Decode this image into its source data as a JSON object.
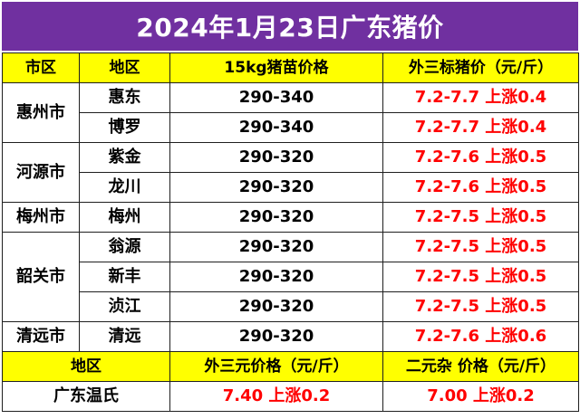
{
  "title": "2024年1月23日广东猪价",
  "header": {
    "col_city": "市区",
    "col_area": "地区",
    "col_piglet": "15kg猪苗价格",
    "col_outer": "外三标猪价（元/斤）"
  },
  "groups": [
    {
      "city": "惠州市",
      "rows": [
        {
          "area": "惠东",
          "piglet": "290-340",
          "outer": "7.2-7.7 上涨0.4"
        },
        {
          "area": "博罗",
          "piglet": "290-340",
          "outer": "7.2-7.7 上涨0.4"
        }
      ]
    },
    {
      "city": "河源市",
      "rows": [
        {
          "area": "紫金",
          "piglet": "290-320",
          "outer": "7.2-7.6 上涨0.5"
        },
        {
          "area": "龙川",
          "piglet": "290-320",
          "outer": "7.2-7.6 上涨0.5"
        }
      ]
    },
    {
      "city": "梅州市",
      "rows": [
        {
          "area": "梅州",
          "piglet": "290-320",
          "outer": "7.2-7.5 上涨0.5"
        }
      ]
    },
    {
      "city": "韶关市",
      "rows": [
        {
          "area": "翁源",
          "piglet": "290-320",
          "outer": "7.2-7.5 上涨0.5"
        },
        {
          "area": "新丰",
          "piglet": "290-320",
          "outer": "7.2-7.5 上涨0.5"
        },
        {
          "area": "浈江",
          "piglet": "290-320",
          "outer": "7.2-7.5 上涨0.5"
        }
      ]
    },
    {
      "city": "清远市",
      "rows": [
        {
          "area": "清远",
          "piglet": "290-320",
          "outer": "7.2-7.6 上涨0.6"
        }
      ]
    }
  ],
  "footer_header": {
    "col_area": "地区",
    "col_outer3": "外三元价格（元/斤）",
    "col_binary": "二元杂 价格（元/斤）"
  },
  "footer_row": {
    "area": "广东温氏",
    "outer3": "7.40 上涨0.2",
    "binary": "7.00 上涨0.2"
  },
  "colors": {
    "title_bg": "#7030a0",
    "header_bg": "#ffff00",
    "price_red": "#ff0000"
  }
}
